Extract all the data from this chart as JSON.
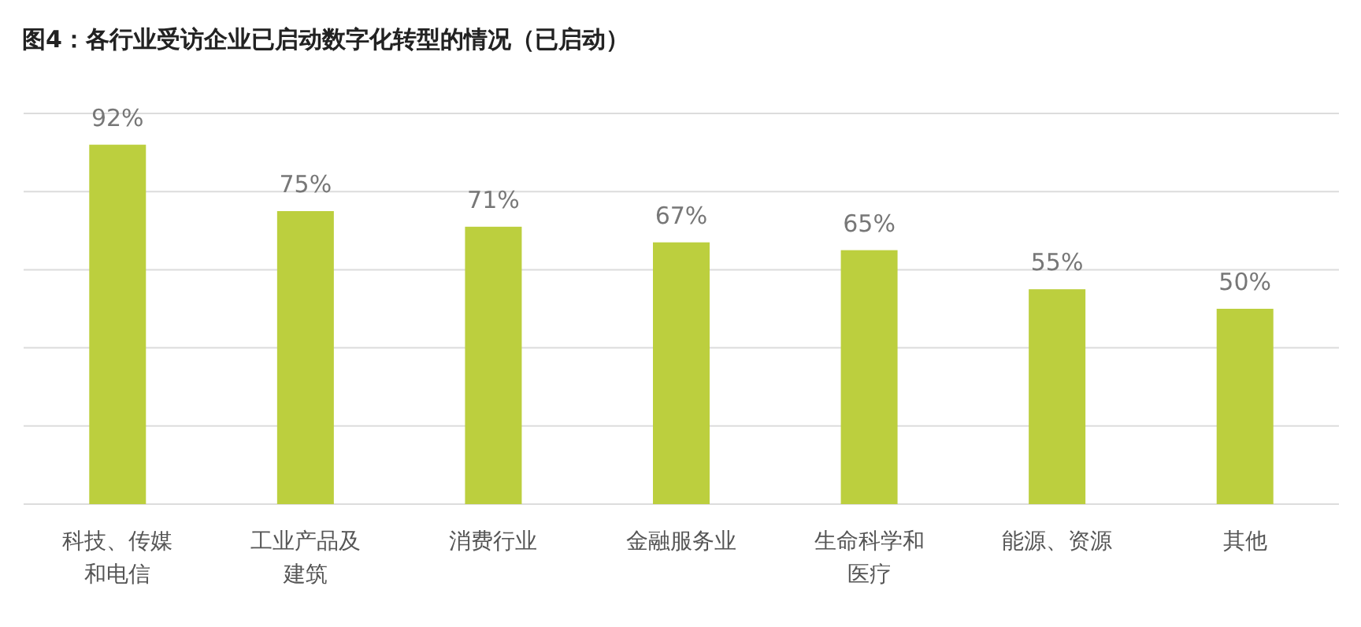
{
  "chart_data": {
    "type": "bar",
    "title": "图4：各行业受访企业已启动数字化转型的情况（已启动）",
    "categories": [
      "科技、传媒和电信",
      "工业产品及建筑",
      "消费行业",
      "金融服务业",
      "生命科学和医疗",
      "能源、资源",
      "其他"
    ],
    "values": [
      92,
      75,
      71,
      67,
      65,
      55,
      50
    ],
    "value_labels": [
      "92%",
      "75%",
      "71%",
      "67%",
      "65%",
      "55%",
      "50%"
    ],
    "color": "#bccf3e",
    "ylim": [
      0,
      100
    ],
    "yticks": [
      {
        "value": 0,
        "label": null
      },
      {
        "value": 20,
        "label": null
      },
      {
        "value": 40,
        "label": null
      },
      {
        "value": 60,
        "label": null
      },
      {
        "value": 80,
        "label": null
      },
      {
        "value": 100,
        "label": null
      }
    ],
    "grid": "y",
    "tick_labels": "x"
  }
}
